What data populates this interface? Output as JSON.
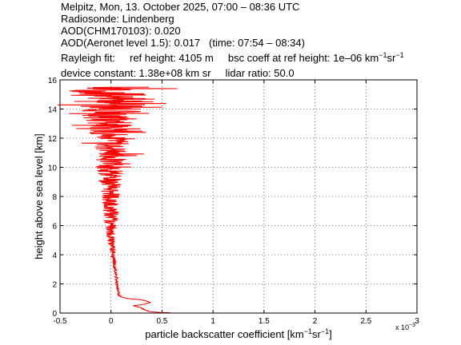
{
  "header": {
    "title": "Melpitz, Mon, 13. October 2025, 07:00 – 08:36 UTC",
    "radiosonde": "Radiosonde: Lindenberg",
    "aod_chm": "AOD(CHM170103): 0.020",
    "aod_aeronet": "AOD(Aeronet level 1.5): 0.017",
    "aod_aeronet_time": "(time: 07:54 – 08:34)",
    "rayleigh_fit": "Rayleigh fit:",
    "ref_height": "ref height: 4105 m",
    "bsc_coeff_prefix": "bsc coeff at ref height: 1e–06 km",
    "bsc_coeff_exp1": "−1",
    "bsc_coeff_mid": "sr",
    "bsc_coeff_exp2": "−1",
    "device_constant": "device constant: 1.38e+08 km sr",
    "lidar_ratio": "lidar ratio: 50.0"
  },
  "chart_data": {
    "type": "line",
    "xlabel_base": "particle backscatter coefficient [km",
    "xlabel_exp1": "−1",
    "xlabel_mid": "sr",
    "xlabel_exp2": "−1",
    "xlabel_end": "]",
    "ylabel": "height above sea level [km]",
    "x_multiplier_label": "x 10",
    "x_multiplier_exp": "−3",
    "xlim": [
      -0.5,
      3
    ],
    "ylim": [
      0,
      16
    ],
    "xticks": [
      -0.5,
      0,
      0.5,
      1,
      1.5,
      2,
      2.5,
      3
    ],
    "xtick_labels": [
      "-0.5",
      "0",
      "0.5",
      "1",
      "1.5",
      "2",
      "2.5",
      "3"
    ],
    "yticks": [
      0,
      2,
      4,
      6,
      8,
      10,
      12,
      14,
      16
    ],
    "ytick_labels": [
      "0",
      "2",
      "4",
      "6",
      "8",
      "10",
      "12",
      "14",
      "16"
    ],
    "grid": true,
    "line_color": "#ff0000",
    "series": [
      {
        "profile_anchors": [
          [
            0.0,
            0.66
          ],
          [
            0.05,
            0.45
          ],
          [
            0.1,
            0.38
          ],
          [
            0.2,
            0.33
          ],
          [
            0.35,
            0.3
          ],
          [
            0.5,
            0.22
          ],
          [
            0.6,
            0.32
          ],
          [
            0.7,
            0.38
          ],
          [
            0.8,
            0.36
          ],
          [
            0.9,
            0.3
          ],
          [
            1.0,
            0.16
          ],
          [
            1.1,
            0.1
          ],
          [
            1.2,
            0.08
          ],
          [
            1.5,
            0.07
          ],
          [
            2.0,
            0.055
          ],
          [
            2.5,
            0.05
          ],
          [
            3.0,
            0.04
          ],
          [
            3.5,
            0.03
          ],
          [
            4.0,
            0.02
          ],
          [
            4.5,
            0.01
          ],
          [
            5.0,
            0.0
          ],
          [
            6.0,
            -0.005
          ],
          [
            7.0,
            0.0
          ],
          [
            8.0,
            0.0
          ],
          [
            9.0,
            -0.01
          ],
          [
            10.0,
            0.0
          ],
          [
            11.0,
            0.0
          ],
          [
            12.0,
            0.0
          ],
          [
            13.0,
            0.0
          ],
          [
            14.0,
            0.0
          ],
          [
            15.0,
            0.0
          ],
          [
            15.5,
            0.0
          ]
        ],
        "noise_anchors": [
          [
            0.0,
            0.01
          ],
          [
            1.5,
            0.01
          ],
          [
            3.0,
            0.015
          ],
          [
            4.5,
            0.03
          ],
          [
            5.5,
            0.05
          ],
          [
            7.0,
            0.08
          ],
          [
            8.5,
            0.1
          ],
          [
            10.0,
            0.14
          ],
          [
            11.0,
            0.16
          ],
          [
            12.0,
            0.2
          ],
          [
            13.0,
            0.25
          ],
          [
            14.0,
            0.33
          ],
          [
            15.0,
            0.4
          ],
          [
            15.5,
            0.42
          ]
        ]
      }
    ]
  }
}
